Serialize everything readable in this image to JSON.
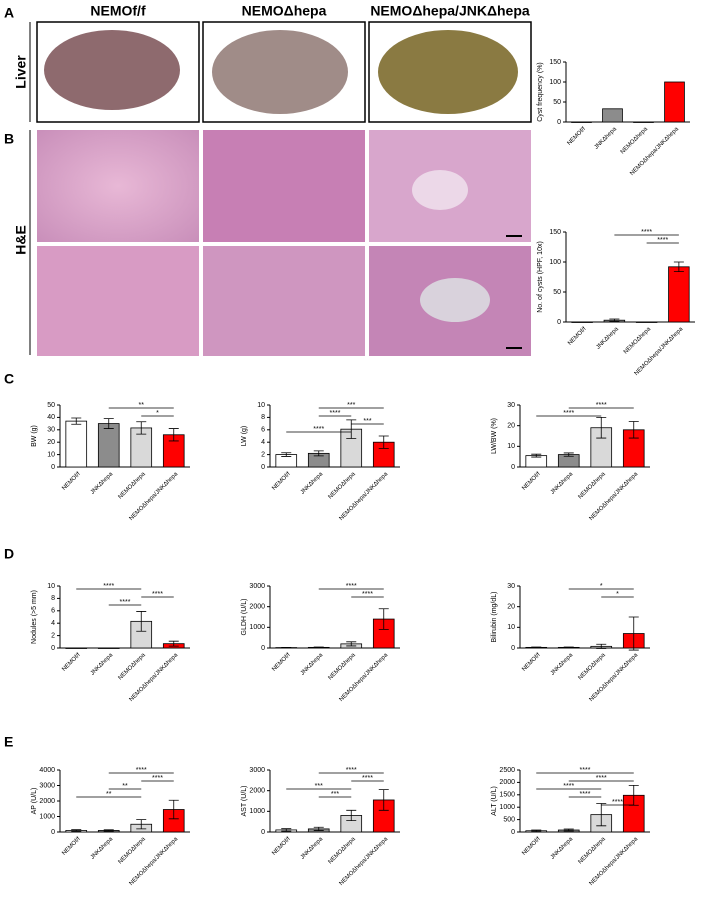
{
  "figure": {
    "panels": [
      "A",
      "B",
      "C",
      "D",
      "E"
    ],
    "columns": [
      "NEMOf/f",
      "NEMOΔhepa",
      "NEMOΔhepa/JNKΔhepa"
    ],
    "rows": [
      "Liver",
      "H&E"
    ]
  },
  "chart_data": [
    {
      "type": "bar",
      "ylabel": "Cyst frequency (%)",
      "categories": [
        "NEMOf/f",
        "JNKΔhepa",
        "NEMOΔhepa",
        "NEMOΔhepa/JNKΔhepa"
      ],
      "values": [
        0,
        33,
        0,
        100
      ],
      "colors": [
        "#ffffff",
        "#8c8c8c",
        "#d9d9d9",
        "#ff0000"
      ],
      "ylim": [
        0,
        150
      ],
      "yticks": [
        0,
        50,
        100,
        150
      ],
      "comparisons": []
    },
    {
      "type": "bar",
      "ylabel": "No. of cysts (HPF, 10x)",
      "categories": [
        "NEMOf/f",
        "JNKΔhepa",
        "NEMOΔhepa",
        "NEMOΔhepa/JNKΔhepa"
      ],
      "values": [
        0,
        3,
        0,
        92
      ],
      "errors": [
        0,
        2,
        0,
        8
      ],
      "colors": [
        "#ffffff",
        "#8c8c8c",
        "#d9d9d9",
        "#ff0000"
      ],
      "ylim": [
        0,
        150
      ],
      "yticks": [
        0,
        50,
        100,
        150
      ],
      "comparisons": [
        {
          "pair": [
            1,
            3
          ],
          "label": "****"
        },
        {
          "pair": [
            2,
            3
          ],
          "label": "****"
        }
      ]
    },
    {
      "type": "bar",
      "ylabel": "BW (g)",
      "categories": [
        "NEMOf/f",
        "JNKΔhepa",
        "NEMOΔhepa",
        "NEMOΔhepa/JNKΔhepa"
      ],
      "values": [
        37,
        35,
        31.5,
        26
      ],
      "errors": [
        2.5,
        4,
        5,
        5
      ],
      "colors": [
        "#ffffff",
        "#8c8c8c",
        "#d9d9d9",
        "#ff0000"
      ],
      "ylim": [
        0,
        50
      ],
      "yticks": [
        0,
        10,
        20,
        30,
        40,
        50
      ],
      "comparisons": [
        {
          "pair": [
            1,
            3
          ],
          "label": "**"
        },
        {
          "pair": [
            2,
            3
          ],
          "label": "*"
        }
      ]
    },
    {
      "type": "bar",
      "ylabel": "LW (g)",
      "categories": [
        "NEMOf/f",
        "JNKΔhepa",
        "NEMOΔhepa",
        "NEMOΔhepa/JNKΔhepa"
      ],
      "values": [
        2,
        2.2,
        6.1,
        4
      ],
      "errors": [
        0.3,
        0.4,
        1.5,
        1
      ],
      "colors": [
        "#ffffff",
        "#8c8c8c",
        "#d9d9d9",
        "#ff0000"
      ],
      "ylim": [
        0,
        10
      ],
      "yticks": [
        0,
        2,
        4,
        6,
        8,
        10
      ],
      "comparisons": [
        {
          "pair": [
            1,
            3
          ],
          "label": "***"
        },
        {
          "pair": [
            1,
            2
          ],
          "label": "****"
        },
        {
          "pair": [
            2,
            3
          ],
          "label": "***"
        },
        {
          "pair": [
            0,
            2
          ],
          "label": "****"
        }
      ]
    },
    {
      "type": "bar",
      "ylabel": "LW/BW (%)",
      "categories": [
        "NEMOf/f",
        "JNKΔhepa",
        "NEMOΔhepa",
        "NEMOΔhepa/JNKΔhepa"
      ],
      "values": [
        5.5,
        6,
        19,
        18
      ],
      "errors": [
        0.7,
        0.8,
        5,
        4
      ],
      "colors": [
        "#ffffff",
        "#8c8c8c",
        "#d9d9d9",
        "#ff0000"
      ],
      "ylim": [
        0,
        30
      ],
      "yticks": [
        0,
        10,
        20,
        30
      ],
      "comparisons": [
        {
          "pair": [
            1,
            3
          ],
          "label": "****"
        },
        {
          "pair": [
            0,
            2
          ],
          "label": "****"
        }
      ]
    },
    {
      "type": "bar",
      "ylabel": "Nodules (>5 mm)",
      "categories": [
        "NEMOf/f",
        "JNKΔhepa",
        "NEMOΔhepa",
        "NEMOΔhepa/JNKΔhepa"
      ],
      "values": [
        0,
        0,
        4.3,
        0.7
      ],
      "errors": [
        0,
        0,
        1.6,
        0.4
      ],
      "colors": [
        "#ffffff",
        "#8c8c8c",
        "#d9d9d9",
        "#ff0000"
      ],
      "ylim": [
        0,
        10
      ],
      "yticks": [
        0,
        2,
        4,
        6,
        8,
        10
      ],
      "comparisons": [
        {
          "pair": [
            0,
            2
          ],
          "label": "****"
        },
        {
          "pair": [
            2,
            3
          ],
          "label": "****"
        },
        {
          "pair": [
            1,
            2
          ],
          "label": "****"
        }
      ]
    },
    {
      "type": "bar",
      "ylabel": "GLDH (U/L)",
      "categories": [
        "NEMOf/f",
        "JNKΔhepa",
        "NEMOΔhepa",
        "NEMOΔhepa/JNKΔhepa"
      ],
      "values": [
        20,
        30,
        200,
        1400
      ],
      "errors": [
        10,
        15,
        100,
        500
      ],
      "colors": [
        "#ffffff",
        "#8c8c8c",
        "#d9d9d9",
        "#ff0000"
      ],
      "ylim": [
        0,
        3000
      ],
      "yticks": [
        0,
        1000,
        2000,
        3000
      ],
      "comparisons": [
        {
          "pair": [
            1,
            3
          ],
          "label": "****"
        },
        {
          "pair": [
            2,
            3
          ],
          "label": "****"
        }
      ]
    },
    {
      "type": "bar",
      "ylabel": "Bilirubin (mg/dL)",
      "categories": [
        "NEMOf/f",
        "JNKΔhepa",
        "NEMOΔhepa",
        "NEMOΔhepa/JNKΔhepa"
      ],
      "values": [
        0.3,
        0.3,
        0.8,
        7
      ],
      "errors": [
        0.2,
        0.2,
        1,
        8
      ],
      "colors": [
        "#ffffff",
        "#8c8c8c",
        "#d9d9d9",
        "#ff0000"
      ],
      "ylim": [
        0,
        30
      ],
      "yticks": [
        0,
        10,
        20,
        30
      ],
      "comparisons": [
        {
          "pair": [
            1,
            3
          ],
          "label": "*"
        },
        {
          "pair": [
            2,
            3
          ],
          "label": "*"
        }
      ]
    },
    {
      "type": "bar",
      "ylabel": "AP (U/L)",
      "categories": [
        "NEMOf/f",
        "JNKΔhepa",
        "NEMOΔhepa",
        "NEMOΔhepa/JNKΔhepa"
      ],
      "values": [
        100,
        100,
        500,
        1450
      ],
      "errors": [
        50,
        40,
        300,
        600
      ],
      "colors": [
        "#ffffff",
        "#8c8c8c",
        "#d9d9d9",
        "#ff0000"
      ],
      "ylim": [
        0,
        4000
      ],
      "yticks": [
        0,
        1000,
        2000,
        3000,
        4000
      ],
      "comparisons": [
        {
          "pair": [
            1,
            3
          ],
          "label": "****"
        },
        {
          "pair": [
            2,
            3
          ],
          "label": "****"
        },
        {
          "pair": [
            1,
            2
          ],
          "label": "**"
        },
        {
          "pair": [
            0,
            2
          ],
          "label": "**"
        }
      ]
    },
    {
      "type": "bar",
      "ylabel": "AST (U/L)",
      "categories": [
        "NEMOf/f",
        "JNKΔhepa",
        "NEMOΔhepa",
        "NEMOΔhepa/JNKΔhepa"
      ],
      "values": [
        100,
        150,
        800,
        1550
      ],
      "errors": [
        60,
        80,
        250,
        500
      ],
      "colors": [
        "#ffffff",
        "#8c8c8c",
        "#d9d9d9",
        "#ff0000"
      ],
      "ylim": [
        0,
        3000
      ],
      "yticks": [
        0,
        1000,
        2000,
        3000
      ],
      "comparisons": [
        {
          "pair": [
            1,
            3
          ],
          "label": "****"
        },
        {
          "pair": [
            2,
            3
          ],
          "label": "****"
        },
        {
          "pair": [
            0,
            2
          ],
          "label": "***"
        },
        {
          "pair": [
            1,
            2
          ],
          "label": "***"
        }
      ]
    },
    {
      "type": "bar",
      "ylabel": "ALT (U/L)",
      "categories": [
        "NEMOf/f",
        "JNKΔhepa",
        "NEMOΔhepa",
        "NEMOΔhepa/JNKΔhepa"
      ],
      "values": [
        50,
        80,
        700,
        1480
      ],
      "errors": [
        30,
        40,
        450,
        400
      ],
      "colors": [
        "#ffffff",
        "#8c8c8c",
        "#d9d9d9",
        "#ff0000"
      ],
      "ylim": [
        0,
        2500
      ],
      "yticks": [
        0,
        500,
        1000,
        1500,
        2000,
        2500
      ],
      "comparisons": [
        {
          "pair": [
            0,
            3
          ],
          "label": "****"
        },
        {
          "pair": [
            1,
            3
          ],
          "label": "****"
        },
        {
          "pair": [
            0,
            2
          ],
          "label": "****"
        },
        {
          "pair": [
            1,
            2
          ],
          "label": "****"
        },
        {
          "pair": [
            2,
            3
          ],
          "label": "****"
        }
      ]
    }
  ]
}
